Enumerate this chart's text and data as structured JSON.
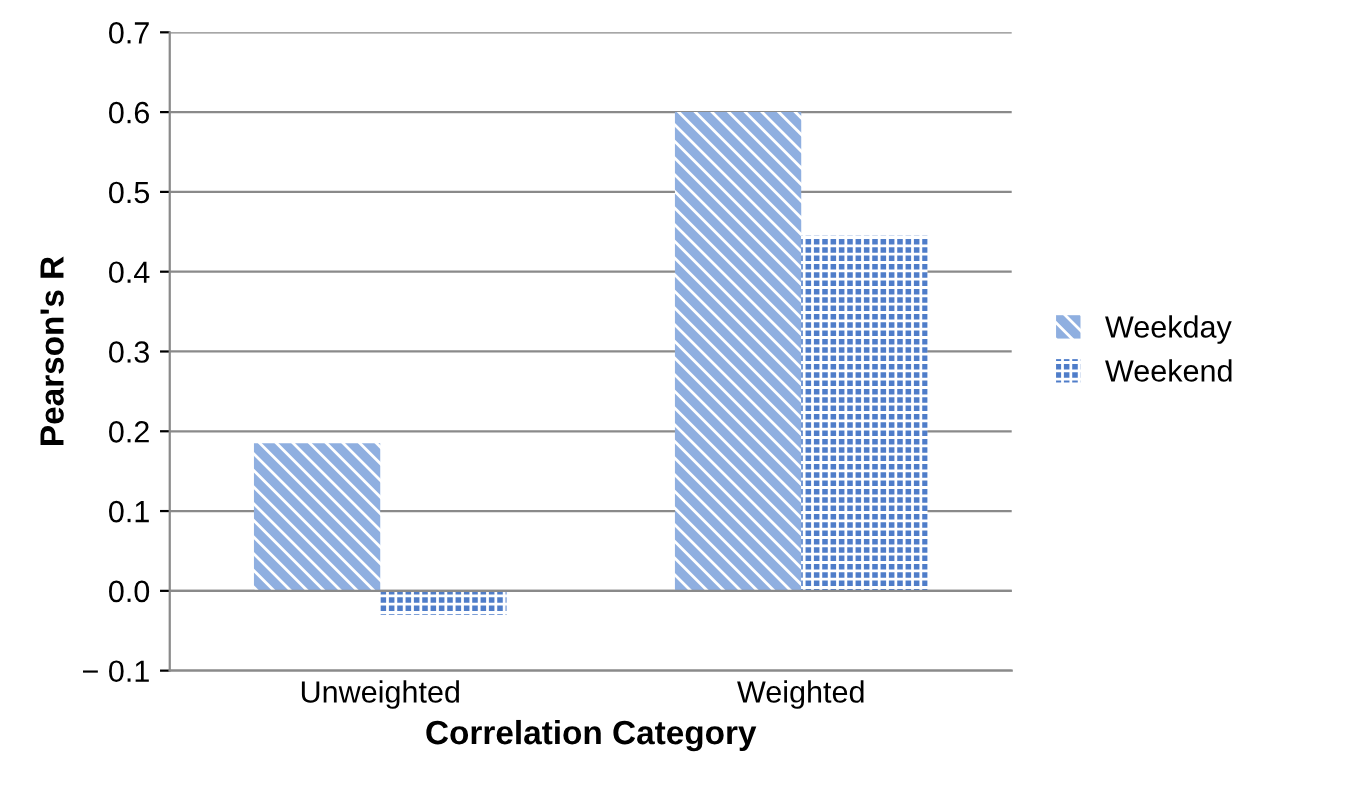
{
  "chart_data": {
    "type": "bar",
    "xlabel": "Correlation Category",
    "ylabel": "Pearson's R",
    "categories": [
      "Unweighted",
      "Weighted"
    ],
    "series": [
      {
        "name": "Weekday",
        "color": "#8fafe0",
        "values": [
          0.185,
          0.6
        ]
      },
      {
        "name": "Weekend",
        "color": "#4f7dc9",
        "values": [
          -0.03,
          0.445
        ]
      }
    ],
    "ylim": [
      -0.1,
      0.7
    ],
    "yticks": [
      {
        "value": -0.1,
        "label": "− 0.1"
      },
      {
        "value": 0.0,
        "label": "0.0"
      },
      {
        "value": 0.1,
        "label": "0.1"
      },
      {
        "value": 0.2,
        "label": "0.2"
      },
      {
        "value": 0.3,
        "label": "0.3"
      },
      {
        "value": 0.4,
        "label": "0.4"
      },
      {
        "value": 0.5,
        "label": "0.5"
      },
      {
        "value": 0.6,
        "label": "0.6"
      },
      {
        "value": 0.7,
        "label": "0.7"
      }
    ],
    "grid": "y",
    "legend": "right"
  }
}
